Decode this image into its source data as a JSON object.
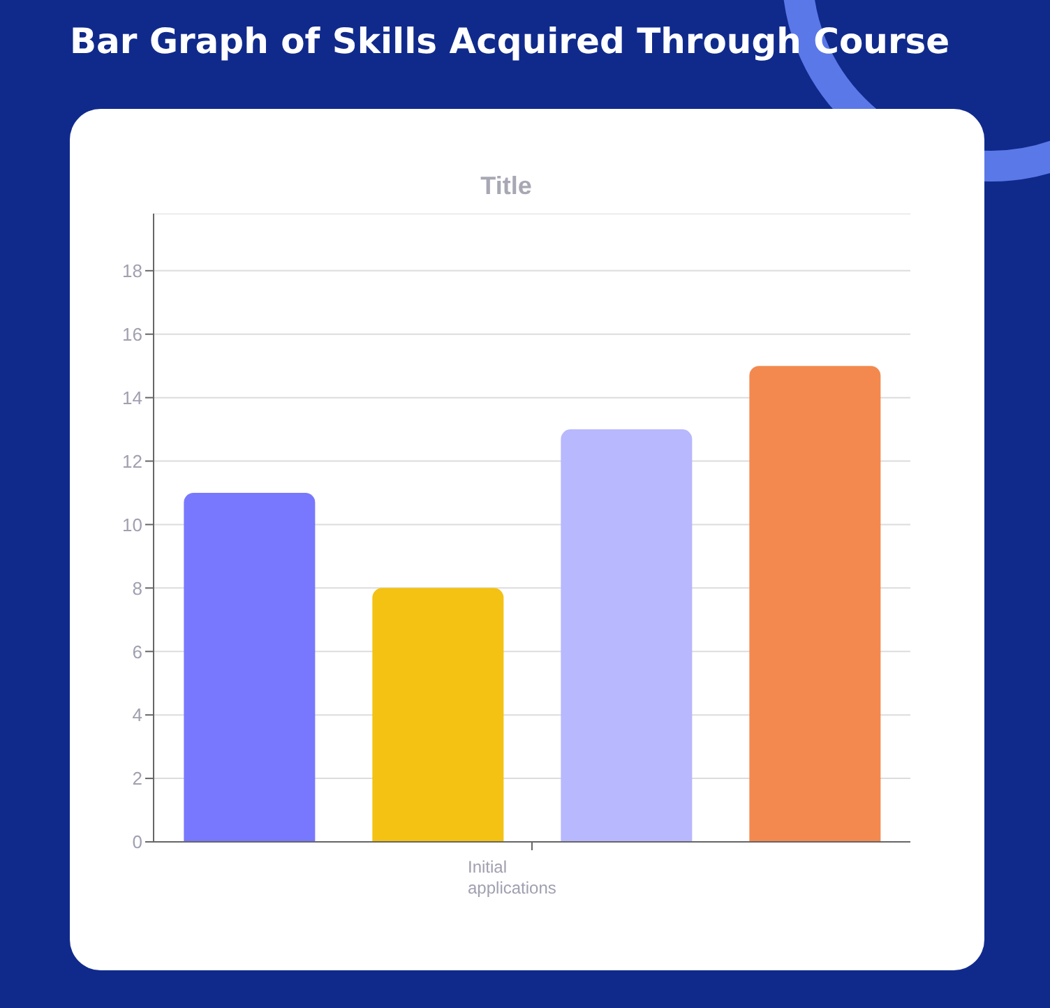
{
  "chart_data": {
    "type": "bar",
    "title": "Bar Graph of Skills Acquired Through Course",
    "subtitle": "Title",
    "categories": [
      "Initial applications"
    ],
    "series": [
      {
        "color": "#7878fe",
        "values": [
          11
        ]
      },
      {
        "color": "#f3c212",
        "values": [
          8
        ]
      },
      {
        "color": "#b8b8fe",
        "values": [
          13
        ]
      },
      {
        "color": "#f3894f",
        "values": [
          15
        ]
      }
    ],
    "ylim": [
      0,
      19.8
    ],
    "yticks": [
      0,
      2,
      4,
      6,
      8,
      10,
      12,
      14,
      16,
      18
    ],
    "grid": "y"
  }
}
